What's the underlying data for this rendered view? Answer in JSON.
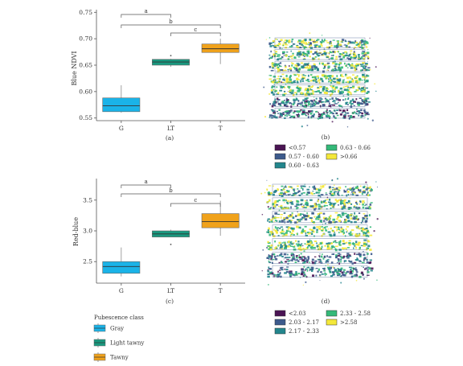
{
  "chart_data": [
    {
      "type": "box",
      "panel_label": "(a)",
      "ylabel": "Blue NDVI",
      "categories": [
        "G",
        "LT",
        "T"
      ],
      "yticks": [
        "0.55",
        "0.60",
        "0.65",
        "0.70",
        "0.75"
      ],
      "ylim": [
        0.545,
        0.755
      ],
      "boxes": [
        {
          "min": 0.56,
          "q1": 0.562,
          "median": 0.573,
          "q3": 0.588,
          "max": 0.612,
          "outliers": []
        },
        {
          "min": 0.647,
          "q1": 0.65,
          "median": 0.656,
          "q3": 0.661,
          "max": 0.662,
          "outliers": [
            0.668
          ]
        },
        {
          "min": 0.652,
          "q1": 0.674,
          "median": 0.681,
          "q3": 0.69,
          "max": 0.7,
          "outliers": []
        }
      ],
      "comparisons": [
        {
          "pair": [
            "G",
            "LT"
          ],
          "symbol": "a"
        },
        {
          "pair": [
            "G",
            "T"
          ],
          "symbol": "b"
        },
        {
          "pair": [
            "LT",
            "T"
          ],
          "symbol": "c"
        }
      ]
    },
    {
      "type": "box",
      "panel_label": "(c)",
      "ylabel": "Red-blue",
      "categories": [
        "G",
        "LT",
        "T"
      ],
      "yticks": [
        "2.5",
        "3.0",
        "3.5"
      ],
      "ylim": [
        2.15,
        3.85
      ],
      "boxes": [
        {
          "min": 2.26,
          "q1": 2.31,
          "median": 2.42,
          "q3": 2.5,
          "max": 2.73,
          "outliers": []
        },
        {
          "min": 2.9,
          "q1": 2.9,
          "median": 2.95,
          "q3": 3.0,
          "max": 3.02,
          "outliers": [
            2.78
          ]
        },
        {
          "min": 2.92,
          "q1": 3.05,
          "median": 3.15,
          "q3": 3.28,
          "max": 3.49,
          "outliers": []
        }
      ],
      "comparisons": [
        {
          "pair": [
            "G",
            "LT"
          ],
          "symbol": "a"
        },
        {
          "pair": [
            "G",
            "T"
          ],
          "symbol": "b"
        },
        {
          "pair": [
            "LT",
            "T"
          ],
          "symbol": "c"
        }
      ]
    }
  ],
  "series_colors": {
    "G": "#1ab3e8",
    "LT": "#19997f",
    "T": "#f0a21b"
  },
  "legend": {
    "title": "Pubescence class",
    "items": [
      {
        "label": "Gray",
        "color": "#1ab3e8"
      },
      {
        "label": "Light tawny",
        "color": "#19997f"
      },
      {
        "label": "Tawny",
        "color": "#f0a21b"
      }
    ]
  },
  "maps": [
    {
      "panel_label": "(b)",
      "legend": [
        {
          "label": "<0.57",
          "color": "#4b1454"
        },
        {
          "label": "0.57 - 0.60",
          "color": "#3d5a8c"
        },
        {
          "label": "0.60 - 0.63",
          "color": "#23868d"
        },
        {
          "label": "0.63 - 0.66",
          "color": "#34b979"
        },
        {
          "label": ">0.66",
          "color": "#f4e83a"
        }
      ]
    },
    {
      "panel_label": "(d)",
      "legend": [
        {
          "label": "<2.03",
          "color": "#4b1454"
        },
        {
          "label": "2.03 - 2.17",
          "color": "#3d5a8c"
        },
        {
          "label": "2.17 - 2.33",
          "color": "#23868d"
        },
        {
          "label": "2.33 - 2.58",
          "color": "#34b979"
        },
        {
          "label": ">2.58",
          "color": "#f4e83a"
        }
      ]
    }
  ]
}
